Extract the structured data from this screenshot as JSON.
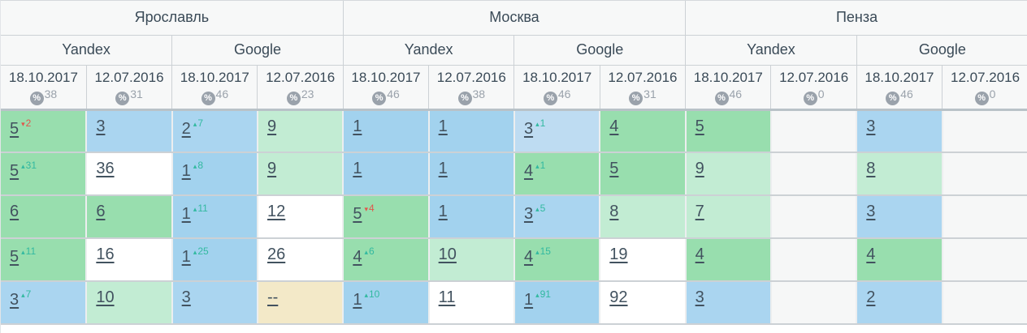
{
  "labels": {
    "percent_icon": "%"
  },
  "palette": {
    "green": "#98deae",
    "light_green": "#c2ecd3",
    "blue_pos1": "#a2d2ee",
    "blue": "#aad5f0",
    "blue_light": "#bedcf2",
    "white": "#ffffff",
    "empty": "#f6f7f7",
    "tan": "#f3e9c8",
    "delta_up": "#32b9a0",
    "delta_down": "#e1554b",
    "position_text": "#42525f",
    "badge": "#9aa2ab",
    "header_bg": "#f7f8f8"
  },
  "header": {
    "cities": [
      {
        "label": "Ярославль"
      },
      {
        "label": "Москва"
      },
      {
        "label": "Пенза"
      }
    ],
    "engines": [
      {
        "label": "Yandex"
      },
      {
        "label": "Google"
      },
      {
        "label": "Yandex"
      },
      {
        "label": "Google"
      },
      {
        "label": "Yandex"
      },
      {
        "label": "Google"
      }
    ],
    "date_columns": [
      {
        "date": "18.10.2017",
        "percent": "38"
      },
      {
        "date": "12.07.2016",
        "percent": "31"
      },
      {
        "date": "18.10.2017",
        "percent": "46"
      },
      {
        "date": "12.07.2016",
        "percent": "23"
      },
      {
        "date": "18.10.2017",
        "percent": "46"
      },
      {
        "date": "12.07.2016",
        "percent": "38"
      },
      {
        "date": "18.10.2017",
        "percent": "46"
      },
      {
        "date": "12.07.2016",
        "percent": "31"
      },
      {
        "date": "18.10.2017",
        "percent": "46"
      },
      {
        "date": "12.07.2016",
        "percent": "0"
      },
      {
        "date": "18.10.2017",
        "percent": "46"
      },
      {
        "date": "12.07.2016",
        "percent": "0"
      }
    ]
  },
  "rows": [
    {
      "cells": [
        {
          "value": "5",
          "bg": "green",
          "delta": "2",
          "dir": "down"
        },
        {
          "value": "3",
          "bg": "blue"
        },
        {
          "value": "2",
          "bg": "blue",
          "delta": "7",
          "dir": "up"
        },
        {
          "value": "9",
          "bg": "light_green"
        },
        {
          "value": "1",
          "bg": "blue_pos1"
        },
        {
          "value": "1",
          "bg": "blue_pos1"
        },
        {
          "value": "3",
          "bg": "blue_light",
          "delta": "1",
          "dir": "up"
        },
        {
          "value": "4",
          "bg": "green"
        },
        {
          "value": "5",
          "bg": "green"
        },
        {
          "value": "",
          "bg": "empty"
        },
        {
          "value": "3",
          "bg": "blue"
        },
        {
          "value": "",
          "bg": "empty"
        }
      ]
    },
    {
      "cells": [
        {
          "value": "5",
          "bg": "green",
          "delta": "31",
          "dir": "up"
        },
        {
          "value": "36",
          "bg": "white"
        },
        {
          "value": "1",
          "bg": "blue_pos1",
          "delta": "8",
          "dir": "up"
        },
        {
          "value": "9",
          "bg": "light_green"
        },
        {
          "value": "1",
          "bg": "blue_pos1"
        },
        {
          "value": "1",
          "bg": "blue_pos1"
        },
        {
          "value": "4",
          "bg": "green",
          "delta": "1",
          "dir": "up"
        },
        {
          "value": "5",
          "bg": "green"
        },
        {
          "value": "9",
          "bg": "light_green"
        },
        {
          "value": "",
          "bg": "empty"
        },
        {
          "value": "8",
          "bg": "light_green"
        },
        {
          "value": "",
          "bg": "empty"
        }
      ]
    },
    {
      "cells": [
        {
          "value": "6",
          "bg": "green"
        },
        {
          "value": "6",
          "bg": "green"
        },
        {
          "value": "1",
          "bg": "blue_pos1",
          "delta": "11",
          "dir": "up"
        },
        {
          "value": "12",
          "bg": "white"
        },
        {
          "value": "5",
          "bg": "green",
          "delta": "4",
          "dir": "down"
        },
        {
          "value": "1",
          "bg": "blue_pos1"
        },
        {
          "value": "3",
          "bg": "blue",
          "delta": "5",
          "dir": "up"
        },
        {
          "value": "8",
          "bg": "light_green"
        },
        {
          "value": "7",
          "bg": "light_green"
        },
        {
          "value": "",
          "bg": "empty"
        },
        {
          "value": "3",
          "bg": "blue"
        },
        {
          "value": "",
          "bg": "empty"
        }
      ]
    },
    {
      "cells": [
        {
          "value": "5",
          "bg": "green",
          "delta": "11",
          "dir": "up"
        },
        {
          "value": "16",
          "bg": "white"
        },
        {
          "value": "1",
          "bg": "blue_pos1",
          "delta": "25",
          "dir": "up"
        },
        {
          "value": "26",
          "bg": "white"
        },
        {
          "value": "4",
          "bg": "green",
          "delta": "6",
          "dir": "up"
        },
        {
          "value": "10",
          "bg": "light_green"
        },
        {
          "value": "4",
          "bg": "green",
          "delta": "15",
          "dir": "up"
        },
        {
          "value": "19",
          "bg": "white"
        },
        {
          "value": "4",
          "bg": "green"
        },
        {
          "value": "",
          "bg": "empty"
        },
        {
          "value": "4",
          "bg": "green"
        },
        {
          "value": "",
          "bg": "empty"
        }
      ]
    },
    {
      "cells": [
        {
          "value": "3",
          "bg": "blue",
          "delta": "7",
          "dir": "up"
        },
        {
          "value": "10",
          "bg": "light_green"
        },
        {
          "value": "3",
          "bg": "blue"
        },
        {
          "value": "--",
          "bg": "tan"
        },
        {
          "value": "1",
          "bg": "blue_pos1",
          "delta": "10",
          "dir": "up"
        },
        {
          "value": "11",
          "bg": "white"
        },
        {
          "value": "1",
          "bg": "blue_pos1",
          "delta": "91",
          "dir": "up"
        },
        {
          "value": "92",
          "bg": "white"
        },
        {
          "value": "3",
          "bg": "blue"
        },
        {
          "value": "",
          "bg": "empty"
        },
        {
          "value": "2",
          "bg": "blue"
        },
        {
          "value": "",
          "bg": "empty"
        }
      ]
    }
  ]
}
